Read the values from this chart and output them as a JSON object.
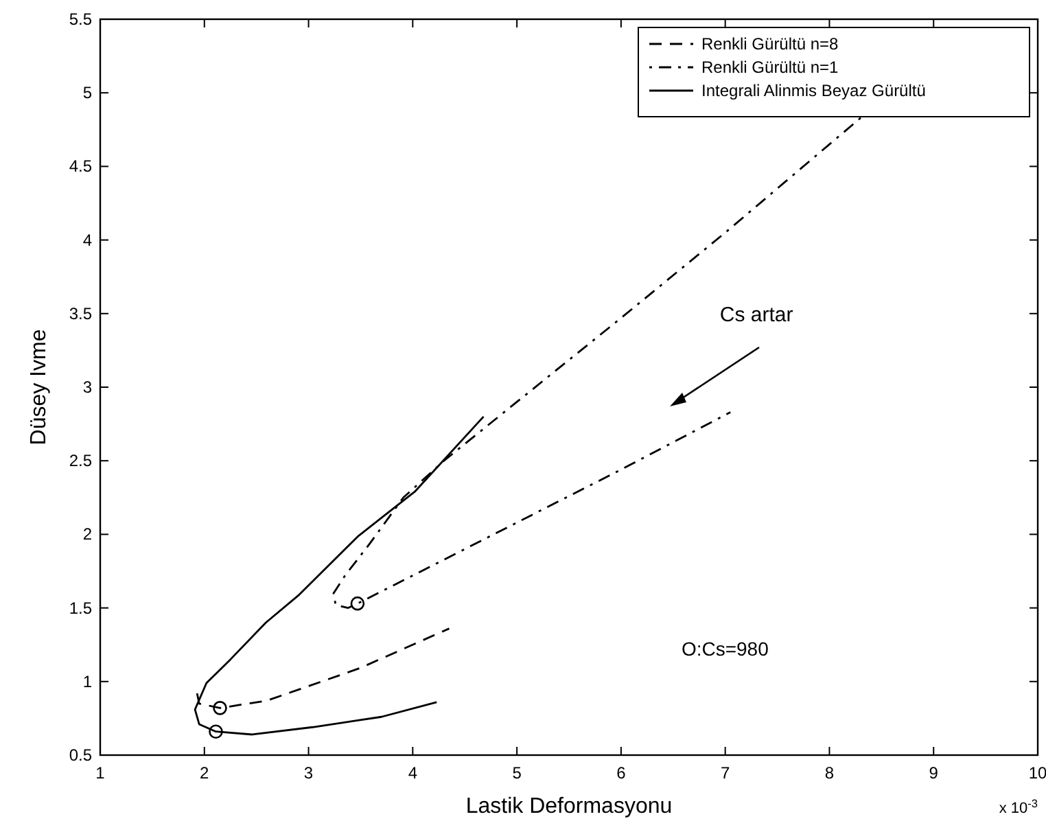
{
  "chart_data": {
    "type": "line",
    "xlabel": "Lastik Deformasyonu",
    "ylabel": "Düsey Ivme",
    "xlim": [
      1,
      10
    ],
    "xticks": [
      1,
      2,
      3,
      4,
      5,
      6,
      7,
      8,
      9,
      10
    ],
    "ylim": [
      0.5,
      5.5
    ],
    "yticks": [
      0.5,
      1,
      1.5,
      2,
      2.5,
      3,
      3.5,
      4,
      4.5,
      5,
      5.5
    ],
    "legend": "top right",
    "grid": false,
    "annotations": [
      "Cs artar",
      "O:Cs=980",
      "x 10$^{-3}$"
    ],
    "series": [
      {
        "name": "Renkli Gürültü n=8",
        "color": "#000000",
        "line_style": "dashed",
        "x": [
          1.93,
          1.95,
          2.15,
          2.6,
          3.49,
          4.35
        ],
        "values": [
          0.92,
          0.85,
          0.82,
          0.87,
          1.09,
          1.36
        ]
      },
      {
        "name": "Renkli Gürültü n=1",
        "color": "#000000",
        "line_style": "dashdot",
        "x": [
          8.3,
          7,
          6,
          5,
          4.72,
          4.3,
          3.91,
          3.58,
          3.35,
          3.24,
          3.26,
          3.38,
          3.47,
          4,
          5,
          6,
          7.05
        ],
        "values": [
          4.83,
          4.05,
          3.47,
          2.9,
          2.74,
          2.5,
          2.25,
          1.93,
          1.72,
          1.6,
          1.52,
          1.5,
          1.53,
          1.72,
          2.08,
          2.44,
          2.83
        ]
      },
      {
        "name": "Integrali Alinmis Beyaz Gürültü",
        "color": "#000000",
        "line_style": "solid",
        "x": [
          4.68,
          4.02,
          3.48,
          2.91,
          2.59,
          2.25,
          2.02,
          1.91,
          1.95,
          2.11,
          2.46,
          3.04,
          3.7,
          4.23
        ],
        "values": [
          2.8,
          2.29,
          1.99,
          1.59,
          1.4,
          1.15,
          0.99,
          0.81,
          0.71,
          0.66,
          0.64,
          0.69,
          0.76,
          0.86
        ]
      },
      {
        "type": "scatter",
        "marker": "circle",
        "color": "#000000",
        "x": [
          2.15,
          3.47,
          2.11
        ],
        "values": [
          0.82,
          1.53,
          0.66
        ]
      }
    ]
  }
}
